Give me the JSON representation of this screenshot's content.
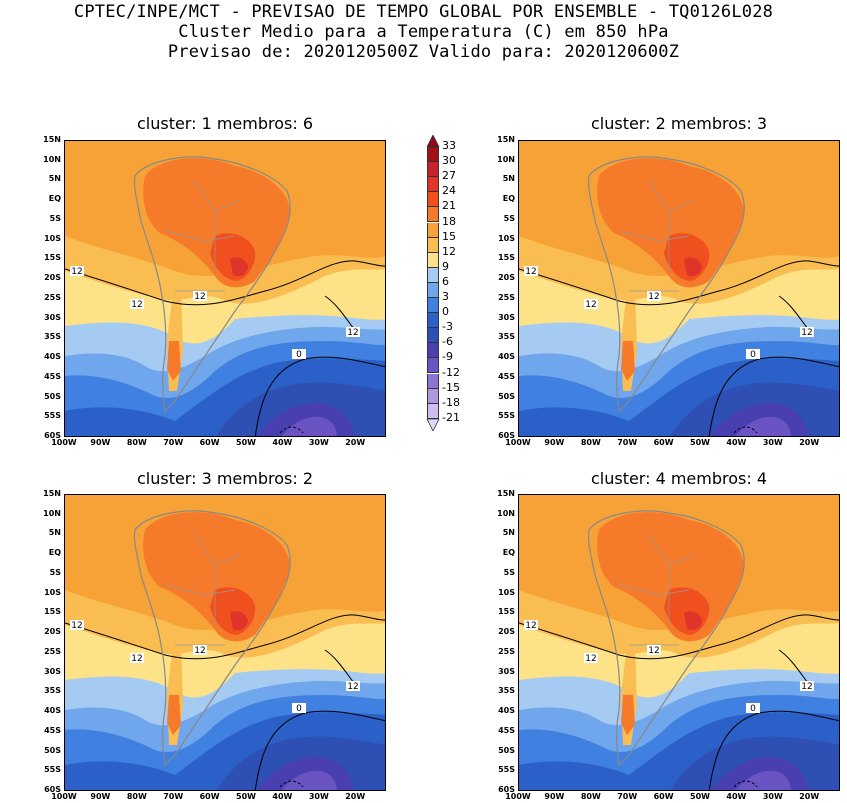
{
  "header": {
    "line1": "CPTEC/INPE/MCT - PREVISAO DE TEMPO GLOBAL POR ENSEMBLE - TQ0126L028",
    "line2": "Cluster Medio para a Temperatura (C) em 850 hPa",
    "line3": "Previsao de: 2020120500Z   Valido para: 2020120600Z"
  },
  "panels": [
    {
      "title": "cluster: 1  membros: 6"
    },
    {
      "title": "cluster: 2  membros: 3"
    },
    {
      "title": "cluster: 3  membros: 2"
    },
    {
      "title": "cluster: 4  membros: 4"
    }
  ],
  "lat_labels": [
    "15N",
    "10N",
    "5N",
    "EQ",
    "5S",
    "10S",
    "15S",
    "20S",
    "25S",
    "30S",
    "35S",
    "40S",
    "45S",
    "50S",
    "55S",
    "60S"
  ],
  "lon_labels": [
    "100W",
    "90W",
    "80W",
    "70W",
    "60W",
    "50W",
    "40W",
    "30W",
    "20W"
  ],
  "contour_labels": {
    "twelve": "12",
    "zero": "0"
  },
  "colorbar": {
    "labels": [
      "33",
      "30",
      "27",
      "24",
      "21",
      "18",
      "15",
      "12",
      "9",
      "6",
      "3",
      "0",
      "-3",
      "-6",
      "-9",
      "-12",
      "-15",
      "-18",
      "-21"
    ],
    "colors": [
      "#a50f15",
      "#c8232c",
      "#e0342a",
      "#f0501e",
      "#f57a2a",
      "#f7a236",
      "#f9bd52",
      "#fde287",
      "#a6cbf2",
      "#6fa6ec",
      "#3f80e0",
      "#2a60c8",
      "#2e4fb4",
      "#4a3fb0",
      "#6a54c4",
      "#8c74d4",
      "#ae98e2",
      "#cdbff0"
    ],
    "min_color": "#e2d8f6",
    "max_color": "#8c0b1a"
  }
}
